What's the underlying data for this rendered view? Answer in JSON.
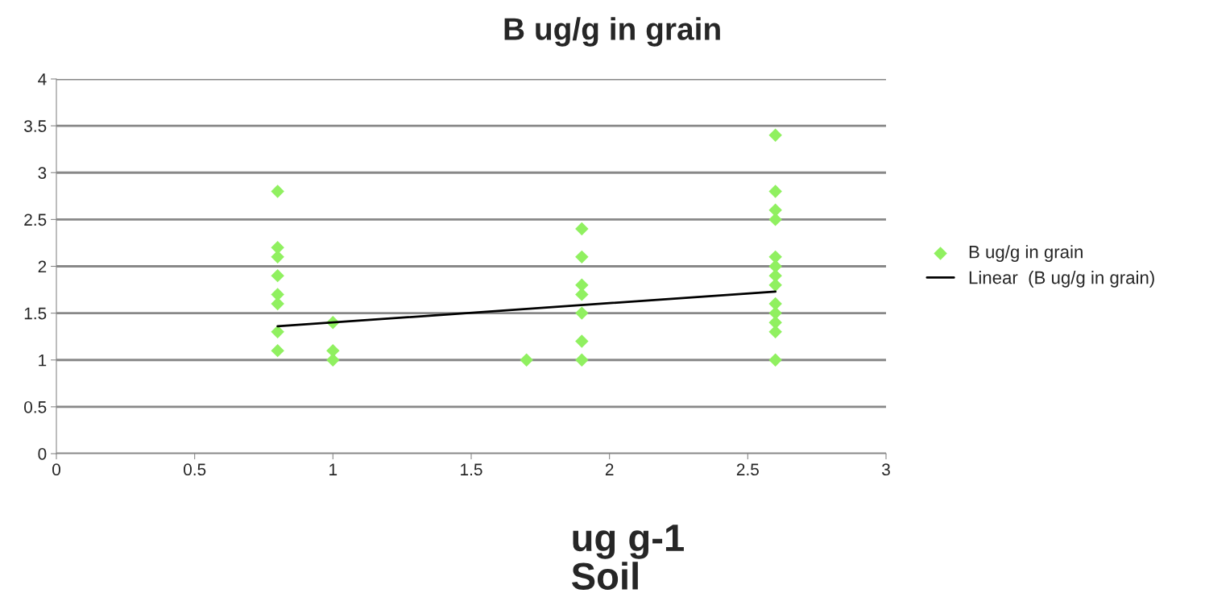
{
  "chart_data": {
    "type": "scatter",
    "title": "B ug/g in grain",
    "xlabel": "ug g-1\nSoil",
    "xlim": [
      0,
      3
    ],
    "xticks": [
      0,
      0.5,
      1,
      1.5,
      2,
      2.5,
      3
    ],
    "ylim": [
      0,
      4
    ],
    "yticks": [
      0,
      0.5,
      1,
      1.5,
      2,
      2.5,
      3,
      3.5,
      4
    ],
    "grid": "y",
    "legend": "right",
    "series": [
      {
        "name": "B ug/g in grain",
        "marker": "diamond",
        "color": "#90f060",
        "x": [
          0.8,
          0.8,
          0.8,
          0.8,
          0.8,
          0.8,
          0.8,
          0.8,
          1,
          1,
          1,
          1.7,
          1.9,
          1.9,
          1.9,
          1.9,
          1.9,
          1.9,
          1.9,
          2.6,
          2.6,
          2.6,
          2.6,
          2.6,
          2.6,
          2.6,
          2.6,
          2.6,
          2.6,
          2.6,
          2.6,
          2.6
        ],
        "values": [
          2.8,
          2.2,
          2.1,
          1.9,
          1.7,
          1.6,
          1.3,
          1.1,
          1.4,
          1.1,
          1.0,
          1.0,
          2.4,
          2.1,
          1.8,
          1.7,
          1.5,
          1.2,
          1.0,
          3.4,
          2.8,
          2.6,
          2.5,
          2.1,
          2.0,
          1.9,
          1.8,
          1.6,
          1.5,
          1.4,
          1.3,
          1.0
        ]
      },
      {
        "name": "Linear  (B ug/g in grain)",
        "type": "line",
        "color": "#000000",
        "x": [
          0.8,
          2.6
        ],
        "values": [
          1.36,
          1.73
        ]
      }
    ]
  }
}
